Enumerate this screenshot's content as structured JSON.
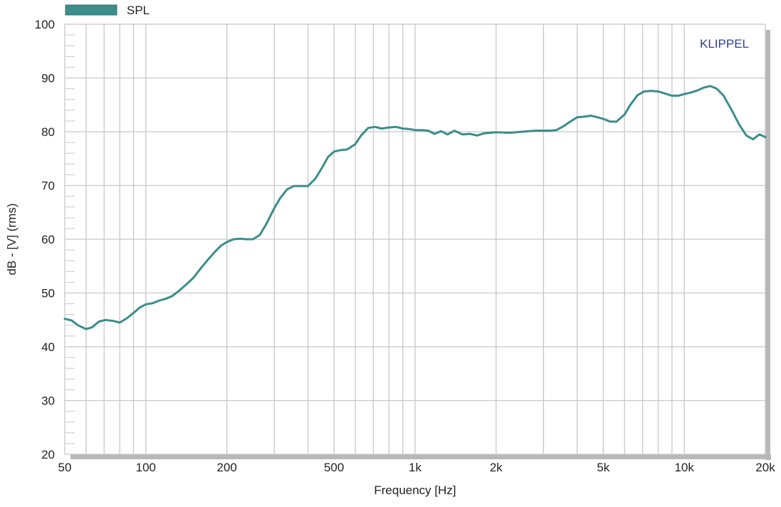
{
  "chart_data": {
    "type": "line",
    "xlabel": "Frequency [Hz]",
    "ylabel": "dB - [V]  (rms)",
    "x_scale": "log",
    "xlim": [
      50,
      20000
    ],
    "ylim": [
      20,
      100
    ],
    "grid": true,
    "legend_placement": "top-left",
    "watermark": "KLIPPEL",
    "x_ticks": [
      {
        "value": 50,
        "label": "50"
      },
      {
        "value": 100,
        "label": "100"
      },
      {
        "value": 200,
        "label": "200"
      },
      {
        "value": 500,
        "label": "500"
      },
      {
        "value": 1000,
        "label": "1k"
      },
      {
        "value": 2000,
        "label": "2k"
      },
      {
        "value": 5000,
        "label": "5k"
      },
      {
        "value": 10000,
        "label": "10k"
      },
      {
        "value": 20000,
        "label": "20k"
      }
    ],
    "y_ticks": [
      {
        "value": 20,
        "label": "20"
      },
      {
        "value": 30,
        "label": "30"
      },
      {
        "value": 40,
        "label": "40"
      },
      {
        "value": 50,
        "label": "50"
      },
      {
        "value": 60,
        "label": "60"
      },
      {
        "value": 70,
        "label": "70"
      },
      {
        "value": 80,
        "label": "80"
      },
      {
        "value": 90,
        "label": "90"
      },
      {
        "value": 100,
        "label": "100"
      }
    ],
    "series": [
      {
        "name": "SPL",
        "color": "#3b8e8a",
        "points": [
          [
            50,
            45.2
          ],
          [
            53,
            44.9
          ],
          [
            56,
            44.0
          ],
          [
            60,
            43.3
          ],
          [
            63,
            43.6
          ],
          [
            67,
            44.7
          ],
          [
            71,
            45.0
          ],
          [
            76,
            44.8
          ],
          [
            80,
            44.5
          ],
          [
            85,
            45.3
          ],
          [
            90,
            46.3
          ],
          [
            95,
            47.3
          ],
          [
            100,
            47.9
          ],
          [
            106,
            48.1
          ],
          [
            112,
            48.6
          ],
          [
            118,
            48.9
          ],
          [
            125,
            49.4
          ],
          [
            132,
            50.3
          ],
          [
            140,
            51.4
          ],
          [
            150,
            52.8
          ],
          [
            160,
            54.6
          ],
          [
            170,
            56.2
          ],
          [
            180,
            57.6
          ],
          [
            190,
            58.8
          ],
          [
            200,
            59.5
          ],
          [
            212,
            60.0
          ],
          [
            224,
            60.1
          ],
          [
            237,
            60.0
          ],
          [
            250,
            60.0
          ],
          [
            265,
            60.8
          ],
          [
            280,
            62.8
          ],
          [
            300,
            65.8
          ],
          [
            315,
            67.6
          ],
          [
            335,
            69.3
          ],
          [
            355,
            69.9
          ],
          [
            375,
            69.9
          ],
          [
            400,
            69.9
          ],
          [
            425,
            71.2
          ],
          [
            450,
            73.2
          ],
          [
            475,
            75.3
          ],
          [
            500,
            76.3
          ],
          [
            530,
            76.6
          ],
          [
            560,
            76.7
          ],
          [
            600,
            77.7
          ],
          [
            630,
            79.3
          ],
          [
            670,
            80.7
          ],
          [
            710,
            80.9
          ],
          [
            750,
            80.6
          ],
          [
            800,
            80.8
          ],
          [
            850,
            80.9
          ],
          [
            900,
            80.6
          ],
          [
            950,
            80.5
          ],
          [
            1000,
            80.3
          ],
          [
            1060,
            80.3
          ],
          [
            1120,
            80.2
          ],
          [
            1180,
            79.6
          ],
          [
            1250,
            80.1
          ],
          [
            1320,
            79.5
          ],
          [
            1400,
            80.2
          ],
          [
            1500,
            79.5
          ],
          [
            1600,
            79.6
          ],
          [
            1700,
            79.3
          ],
          [
            1800,
            79.7
          ],
          [
            1900,
            79.8
          ],
          [
            2000,
            79.9
          ],
          [
            2240,
            79.8
          ],
          [
            2500,
            80.0
          ],
          [
            2800,
            80.2
          ],
          [
            3150,
            80.2
          ],
          [
            3350,
            80.3
          ],
          [
            3550,
            81.0
          ],
          [
            3750,
            81.8
          ],
          [
            4000,
            82.7
          ],
          [
            4250,
            82.8
          ],
          [
            4500,
            83.0
          ],
          [
            4750,
            82.7
          ],
          [
            5000,
            82.4
          ],
          [
            5300,
            81.9
          ],
          [
            5600,
            81.9
          ],
          [
            6000,
            83.2
          ],
          [
            6300,
            85.0
          ],
          [
            6700,
            86.8
          ],
          [
            7100,
            87.5
          ],
          [
            7500,
            87.6
          ],
          [
            8000,
            87.5
          ],
          [
            8500,
            87.1
          ],
          [
            9000,
            86.7
          ],
          [
            9500,
            86.7
          ],
          [
            10000,
            87.0
          ],
          [
            10600,
            87.3
          ],
          [
            11200,
            87.7
          ],
          [
            11800,
            88.2
          ],
          [
            12500,
            88.5
          ],
          [
            13200,
            88.0
          ],
          [
            14000,
            86.7
          ],
          [
            15000,
            84.0
          ],
          [
            16000,
            81.3
          ],
          [
            17000,
            79.3
          ],
          [
            18000,
            78.6
          ],
          [
            19000,
            79.5
          ],
          [
            20000,
            79.0
          ]
        ]
      }
    ]
  }
}
